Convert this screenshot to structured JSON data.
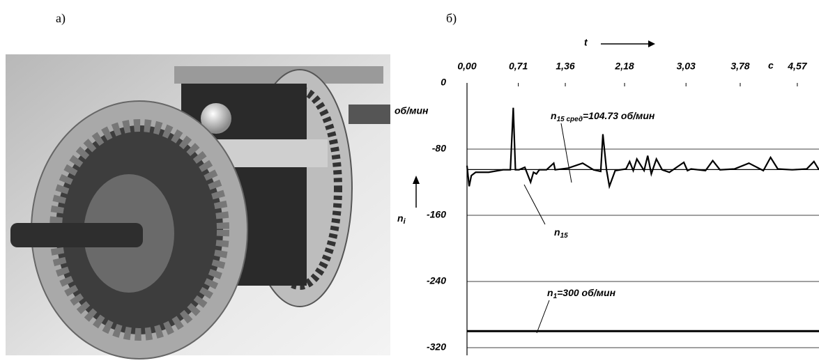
{
  "figure_labels": [
    "а)",
    "б)"
  ],
  "chart_data": {
    "type": "line",
    "x_axis_label": "t",
    "x_unit": "с",
    "y_axis_label": "n",
    "y_axis_label_sub": "i",
    "y_unit": "об/мин",
    "xlim": [
      0,
      4.87
    ],
    "xticks": [
      {
        "value": 0,
        "label": "0,00"
      },
      {
        "value": 0.71,
        "label": "0,71"
      },
      {
        "value": 1.36,
        "label": "1,36"
      },
      {
        "value": 2.18,
        "label": "2,18"
      },
      {
        "value": 3.03,
        "label": "3,03"
      },
      {
        "value": 3.78,
        "label": "3,78"
      },
      {
        "value": 4.57,
        "label": "4,57"
      }
    ],
    "ylim": [
      -320,
      0
    ],
    "yticks": [
      0,
      -80,
      -160,
      -240,
      -320
    ],
    "grid": true,
    "series": [
      {
        "color": "#000000",
        "x": [
          0,
          0.03,
          0.06,
          0.12,
          0.3,
          0.5,
          0.6,
          0.64,
          0.67,
          0.72,
          0.8,
          0.88,
          0.92,
          0.96,
          1.0,
          1.1,
          1.2,
          1.22,
          1.4,
          1.6,
          1.75,
          1.85,
          1.88,
          1.93,
          1.97,
          2.05,
          2.2,
          2.25,
          2.3,
          2.35,
          2.45,
          2.5,
          2.55,
          2.62,
          2.7,
          2.8,
          3.0,
          3.05,
          3.1,
          3.3,
          3.4,
          3.5,
          3.7,
          3.9,
          4.1,
          4.2,
          4.3,
          4.5,
          4.7,
          4.8,
          4.87
        ],
        "values": [
          -100,
          -125,
          -112,
          -108,
          -108,
          -105,
          -105,
          -30,
          -105,
          -105,
          -102,
          -120,
          -108,
          -110,
          -105,
          -105,
          -97,
          -105,
          -103,
          -97,
          -105,
          -107,
          -62,
          -105,
          -125,
          -106,
          -104,
          -95,
          -106,
          -92,
          -106,
          -88,
          -110,
          -92,
          -105,
          -108,
          -96,
          -106,
          -104,
          -106,
          -94,
          -105,
          -104,
          -97,
          -106,
          -90,
          -104,
          -105,
          -104,
          -95,
          -105
        ]
      },
      {
        "color": "#000000",
        "x": [
          0,
          4.87
        ],
        "values": [
          -104.73,
          -104.73
        ]
      },
      {
        "color": "#000000",
        "x": [
          0,
          4.87
        ],
        "values": [
          -300,
          -300
        ]
      }
    ],
    "annotations": [
      {
        "text": "n",
        "sub": "15 сред",
        "rest": "=104.73 об/мин"
      },
      {
        "text": "n",
        "sub": "15",
        "rest": ""
      },
      {
        "text": "n",
        "sub": "1",
        "rest": "=300 об/мин"
      }
    ]
  }
}
